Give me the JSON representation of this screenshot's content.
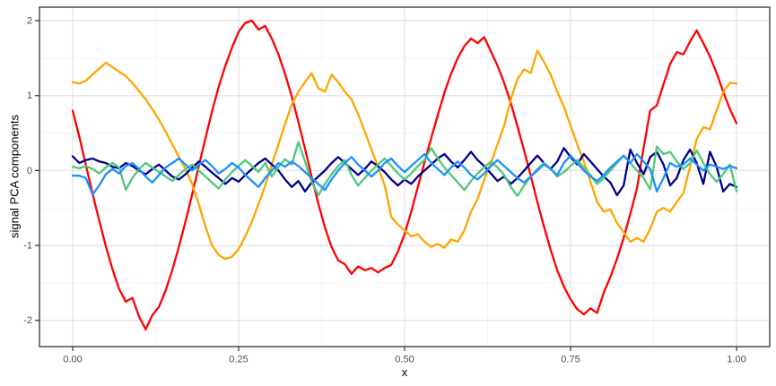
{
  "figure": {
    "background": "#ffffff",
    "panel_border_color": "#333333",
    "grid_major_color": "#e3e3e3",
    "grid_minor_color": "#f2f2f2",
    "tick_mark_color": "#333333",
    "tick_label_color": "#4d4d4d",
    "axis_title_color": "#000000"
  },
  "chart_data": {
    "type": "line",
    "title": "",
    "xlabel": "x",
    "ylabel": "signal PCA components",
    "grid": true,
    "legend": "none",
    "xlim": [
      -0.05,
      1.05
    ],
    "ylim": [
      -2.35,
      2.18
    ],
    "x_ticks": {
      "values": [
        0,
        0.25,
        0.5,
        0.75,
        1
      ],
      "labels": [
        "0.00",
        "0.25",
        "0.50",
        "0.75",
        "1.00"
      ]
    },
    "y_ticks": {
      "values": [
        -2,
        -1,
        0,
        1,
        2
      ],
      "labels": [
        "-2",
        "-1",
        "0",
        "1",
        "2"
      ]
    },
    "x_minor_ticks": [
      0.125,
      0.375,
      0.625,
      0.875
    ],
    "y_minor_ticks": [
      -1.5,
      -0.5,
      0.5,
      1.5
    ],
    "x_start": 0,
    "x_step": 0.01,
    "series": [
      {
        "name": "red-component",
        "color": "#ff0000",
        "values": [
          0.8,
          0.45,
          0.07,
          -0.31,
          -0.67,
          -1.01,
          -1.32,
          -1.58,
          -1.75,
          -1.7,
          -1.95,
          -2.12,
          -1.93,
          -1.82,
          -1.6,
          -1.33,
          -1.02,
          -0.68,
          -0.32,
          0.06,
          0.43,
          0.79,
          1.12,
          1.4,
          1.64,
          1.85,
          1.97,
          2.0,
          1.88,
          1.93,
          1.76,
          1.55,
          1.29,
          0.99,
          0.65,
          0.29,
          -0.08,
          -0.44,
          -0.76,
          -1.02,
          -1.2,
          -1.25,
          -1.38,
          -1.28,
          -1.33,
          -1.3,
          -1.36,
          -1.3,
          -1.26,
          -1.08,
          -0.85,
          -0.55,
          -0.22,
          0.11,
          0.43,
          0.74,
          1.04,
          1.29,
          1.5,
          1.66,
          1.76,
          1.7,
          1.78,
          1.59,
          1.4,
          1.17,
          0.9,
          0.59,
          0.27,
          -0.07,
          -0.42,
          -0.75,
          -1.06,
          -1.33,
          -1.55,
          -1.72,
          -1.85,
          -1.92,
          -1.84,
          -1.9,
          -1.63,
          -1.42,
          -1.18,
          -0.9,
          -0.58,
          -0.24,
          0.3,
          0.8,
          0.87,
          1.15,
          1.42,
          1.58,
          1.55,
          1.72,
          1.87,
          1.7,
          1.52,
          1.3,
          1.05,
          0.82,
          0.63
        ]
      },
      {
        "name": "orange-component",
        "color": "#ffa500",
        "values": [
          1.18,
          1.16,
          1.2,
          1.28,
          1.36,
          1.44,
          1.38,
          1.32,
          1.26,
          1.17,
          1.06,
          0.95,
          0.82,
          0.68,
          0.52,
          0.35,
          0.18,
          0.02,
          -0.18,
          -0.45,
          -0.75,
          -1.0,
          -1.13,
          -1.18,
          -1.15,
          -1.05,
          -0.88,
          -0.68,
          -0.45,
          -0.2,
          0.08,
          0.35,
          0.62,
          0.88,
          1.05,
          1.18,
          1.3,
          1.1,
          1.05,
          1.28,
          1.18,
          1.05,
          0.95,
          0.75,
          0.52,
          0.28,
          0.05,
          -0.2,
          -0.62,
          -0.72,
          -0.8,
          -0.88,
          -0.85,
          -0.95,
          -1.02,
          -0.98,
          -1.03,
          -0.92,
          -0.95,
          -0.8,
          -0.55,
          -0.38,
          -0.12,
          0.1,
          0.35,
          0.6,
          0.95,
          1.22,
          1.35,
          1.3,
          1.6,
          1.45,
          1.28,
          1.05,
          0.85,
          0.6,
          0.35,
          0.12,
          -0.15,
          -0.42,
          -0.55,
          -0.52,
          -0.7,
          -0.82,
          -0.95,
          -0.9,
          -0.95,
          -0.78,
          -0.55,
          -0.5,
          -0.55,
          -0.42,
          -0.3,
          0.05,
          0.42,
          0.58,
          0.55,
          0.8,
          1.05,
          1.17,
          1.16
        ]
      },
      {
        "name": "navy-component",
        "color": "#00008b",
        "values": [
          0.19,
          0.1,
          0.14,
          0.16,
          0.12,
          0.1,
          0.05,
          0.03,
          0.1,
          0.06,
          0.0,
          -0.05,
          0.02,
          0.08,
          0.0,
          -0.08,
          -0.12,
          -0.05,
          0.04,
          0.12,
          0.05,
          -0.03,
          -0.1,
          -0.18,
          -0.1,
          -0.15,
          -0.06,
          0.02,
          0.1,
          0.16,
          0.08,
          0.0,
          -0.12,
          -0.22,
          -0.14,
          -0.28,
          -0.16,
          -0.08,
          0.0,
          0.1,
          0.18,
          0.1,
          0.02,
          -0.06,
          0.02,
          0.12,
          0.06,
          -0.02,
          -0.12,
          -0.2,
          -0.12,
          -0.18,
          -0.08,
          0.0,
          0.08,
          0.16,
          0.22,
          0.12,
          0.04,
          0.14,
          0.25,
          0.14,
          0.06,
          -0.04,
          -0.14,
          -0.08,
          -0.18,
          -0.1,
          0.0,
          0.1,
          0.2,
          0.1,
          0.02,
          0.12,
          0.3,
          0.18,
          0.08,
          0.22,
          0.12,
          0.02,
          -0.08,
          -0.16,
          -0.33,
          -0.2,
          0.28,
          0.1,
          -0.05,
          0.18,
          0.25,
          0.08,
          -0.2,
          -0.1,
          0.14,
          0.28,
          0.1,
          -0.18,
          0.25,
          0.05,
          -0.28,
          -0.18,
          -0.22
        ]
      },
      {
        "name": "green-component",
        "color": "#50c878",
        "values": [
          0.05,
          0.03,
          0.06,
          0.02,
          -0.04,
          0.04,
          0.1,
          0.04,
          -0.26,
          -0.1,
          0.02,
          0.1,
          0.04,
          -0.02,
          -0.08,
          -0.14,
          -0.06,
          0.02,
          0.08,
          0.0,
          -0.08,
          -0.16,
          -0.24,
          -0.12,
          -0.02,
          0.06,
          0.14,
          0.06,
          -0.02,
          0.1,
          -0.08,
          0.05,
          0.15,
          0.08,
          0.38,
          0.12,
          -0.15,
          -0.33,
          -0.18,
          -0.05,
          0.06,
          0.14,
          -0.06,
          -0.2,
          -0.1,
          0.0,
          0.08,
          0.16,
          0.06,
          -0.04,
          -0.12,
          -0.04,
          0.06,
          0.14,
          0.3,
          0.16,
          0.04,
          -0.06,
          -0.16,
          -0.26,
          -0.14,
          -0.04,
          0.04,
          0.12,
          0.04,
          -0.06,
          -0.22,
          -0.34,
          -0.2,
          -0.08,
          0.02,
          0.1,
          0.02,
          -0.08,
          -0.02,
          0.06,
          0.14,
          0.04,
          -0.06,
          -0.18,
          -0.1,
          0.0,
          0.1,
          0.2,
          0.1,
          0.0,
          -0.1,
          -0.25,
          0.32,
          0.22,
          0.25,
          0.12,
          0.02,
          0.1,
          0.27,
          0.1,
          -0.05,
          -0.15,
          -0.05,
          0.08,
          -0.28
        ]
      },
      {
        "name": "dodgerblue-component",
        "color": "#1e90ff",
        "values": [
          -0.07,
          -0.07,
          -0.1,
          -0.32,
          -0.2,
          -0.05,
          0.02,
          -0.04,
          0.06,
          0.1,
          0.02,
          -0.08,
          -0.16,
          -0.06,
          0.04,
          0.1,
          0.16,
          0.08,
          0.0,
          0.08,
          0.14,
          0.06,
          -0.04,
          0.02,
          0.1,
          0.04,
          -0.06,
          -0.14,
          -0.22,
          -0.1,
          0.0,
          0.1,
          0.05,
          0.12,
          0.06,
          -0.02,
          -0.1,
          -0.18,
          -0.26,
          -0.12,
          0.0,
          0.1,
          0.18,
          0.08,
          0.0,
          -0.08,
          0.0,
          0.1,
          0.16,
          0.06,
          -0.02,
          0.06,
          0.14,
          0.22,
          0.1,
          0.02,
          -0.06,
          0.04,
          0.12,
          0.04,
          -0.06,
          -0.12,
          -0.04,
          0.06,
          0.14,
          0.06,
          -0.02,
          -0.1,
          -0.16,
          -0.08,
          0.0,
          0.08,
          0.02,
          -0.06,
          0.1,
          0.2,
          0.1,
          0.0,
          -0.08,
          -0.14,
          -0.06,
          0.04,
          0.12,
          0.2,
          0.1,
          0.22,
          0.12,
          0.02,
          -0.28,
          -0.1,
          0.1,
          0.05,
          0.08,
          0.16,
          0.08,
          0.0,
          0.08,
          0.05,
          0.02,
          0.06,
          0.03
        ]
      }
    ]
  }
}
